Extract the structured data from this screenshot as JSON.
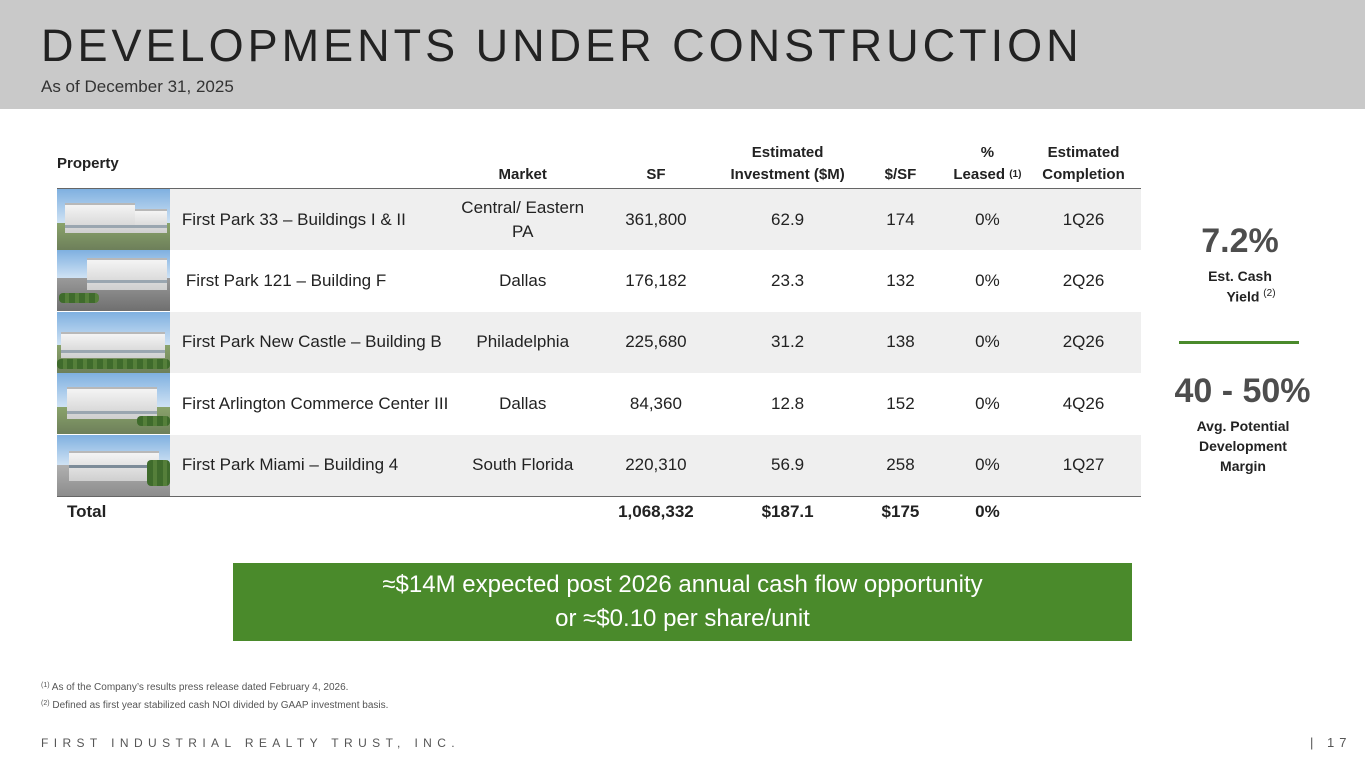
{
  "header": {
    "title": "DEVELOPMENTS UNDER CONSTRUCTION",
    "subtitle": "As of December 31, 2025"
  },
  "table": {
    "headers": {
      "property": "Property",
      "market": "Market",
      "sf": "SF",
      "investment_l1": "Estimated",
      "investment_l2": "Investment ($M)",
      "per_sf": "$/SF",
      "leased_l1": "%",
      "leased_l2": "Leased",
      "leased_note": "(1)",
      "completion_l1": "Estimated",
      "completion_l2": "Completion"
    },
    "rows": [
      {
        "property": "First Park 33 – Buildings I & II",
        "market": "Central/ Eastern PA",
        "sf": "361,800",
        "investment": "62.9",
        "per_sf": "174",
        "leased": "0%",
        "completion": "1Q26"
      },
      {
        "property": "First Park 121 – Building F",
        "market": "Dallas",
        "sf": "176,182",
        "investment": "23.3",
        "per_sf": "132",
        "leased": "0%",
        "completion": "2Q26"
      },
      {
        "property": "First Park New Castle – Building B",
        "market": "Philadelphia",
        "sf": "225,680",
        "investment": "31.2",
        "per_sf": "138",
        "leased": "0%",
        "completion": "2Q26"
      },
      {
        "property": "First Arlington Commerce Center III",
        "market": "Dallas",
        "sf": "84,360",
        "investment": "12.8",
        "per_sf": "152",
        "leased": "0%",
        "completion": "4Q26"
      },
      {
        "property": "First Park Miami – Building 4",
        "market": "South Florida",
        "sf": "220,310",
        "investment": "56.9",
        "per_sf": "258",
        "leased": "0%",
        "completion": "1Q27"
      }
    ],
    "total": {
      "label": "Total",
      "sf": "1,068,332",
      "investment": "$187.1",
      "per_sf": "$175",
      "leased": "0%"
    }
  },
  "metrics": {
    "yield_value": "7.2%",
    "yield_label_l1": "Est. Cash",
    "yield_label_l2": "Yield",
    "yield_note": "(2)",
    "margin_value": "40 - 50%",
    "margin_label_l1": "Avg. Potential",
    "margin_label_l2": "Development",
    "margin_label_l3": "Margin"
  },
  "banner": {
    "line1": "≈$14M expected post 2026 annual cash flow opportunity",
    "line2": "or ≈$0.10 per share/unit"
  },
  "footnotes": {
    "n1_marker": "(1)",
    "n1_text": "As of the Company’s results press release dated February 4, 2026.",
    "n2_marker": "(2)",
    "n2_text": "Defined as first year stabilized cash NOI divided by GAAP investment basis."
  },
  "footer": {
    "company": "FIRST INDUSTRIAL REALTY TRUST, INC.",
    "page": "| 17"
  },
  "colors": {
    "header_bg": "#c9c9c9",
    "accent_green": "#4a8a2b",
    "row_stripe": "#efefef"
  }
}
